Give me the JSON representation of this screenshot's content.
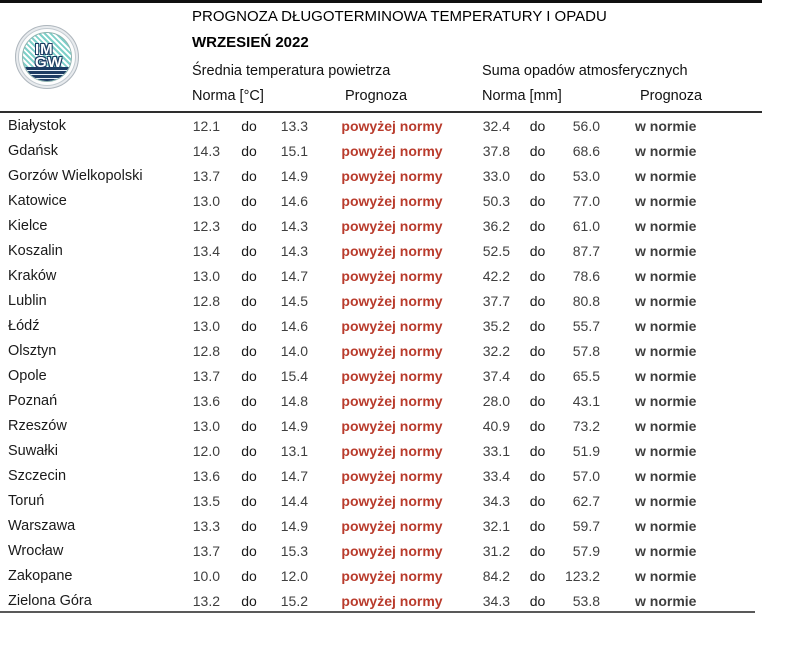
{
  "header": {
    "title": "PROGNOZA DŁUGOTERMINOWA TEMPERATURY I OPADU",
    "subtitle": "WRZESIEŃ 2022",
    "temp_group_label": "Średnia temperatura powietrza",
    "precip_group_label": "Suma opadów atmosferycznych",
    "temp_norm_label": "Norma [°C]",
    "temp_forecast_label": "Prognoza",
    "precip_norm_label": "Norma [mm]",
    "precip_forecast_label": "Prognoza",
    "logo_text_top": "IM",
    "logo_text_bottom": "GW"
  },
  "colors": {
    "above_norm_red": "#b93b2c",
    "in_norm_gray": "#3f3f3f",
    "logo_teal": "#7ed0c9",
    "logo_navy": "#1c3c63"
  },
  "table": {
    "separator_word": "do",
    "rows": [
      {
        "city": "Białystok",
        "t_low": "12.1",
        "t_high": "13.3",
        "t_prognoza": "powyżej normy",
        "p_low": "32.4",
        "p_high": "56.0",
        "p_prognoza": "w normie"
      },
      {
        "city": "Gdańsk",
        "t_low": "14.3",
        "t_high": "15.1",
        "t_prognoza": "powyżej normy",
        "p_low": "37.8",
        "p_high": "68.6",
        "p_prognoza": "w normie"
      },
      {
        "city": "Gorzów Wielkopolski",
        "t_low": "13.7",
        "t_high": "14.9",
        "t_prognoza": "powyżej normy",
        "p_low": "33.0",
        "p_high": "53.0",
        "p_prognoza": "w normie"
      },
      {
        "city": "Katowice",
        "t_low": "13.0",
        "t_high": "14.6",
        "t_prognoza": "powyżej normy",
        "p_low": "50.3",
        "p_high": "77.0",
        "p_prognoza": "w normie"
      },
      {
        "city": "Kielce",
        "t_low": "12.3",
        "t_high": "14.3",
        "t_prognoza": "powyżej normy",
        "p_low": "36.2",
        "p_high": "61.0",
        "p_prognoza": "w normie"
      },
      {
        "city": "Koszalin",
        "t_low": "13.4",
        "t_high": "14.3",
        "t_prognoza": "powyżej normy",
        "p_low": "52.5",
        "p_high": "87.7",
        "p_prognoza": "w normie"
      },
      {
        "city": "Kraków",
        "t_low": "13.0",
        "t_high": "14.7",
        "t_prognoza": "powyżej normy",
        "p_low": "42.2",
        "p_high": "78.6",
        "p_prognoza": "w normie"
      },
      {
        "city": "Lublin",
        "t_low": "12.8",
        "t_high": "14.5",
        "t_prognoza": "powyżej normy",
        "p_low": "37.7",
        "p_high": "80.8",
        "p_prognoza": "w normie"
      },
      {
        "city": "Łódź",
        "t_low": "13.0",
        "t_high": "14.6",
        "t_prognoza": "powyżej normy",
        "p_low": "35.2",
        "p_high": "55.7",
        "p_prognoza": "w normie"
      },
      {
        "city": "Olsztyn",
        "t_low": "12.8",
        "t_high": "14.0",
        "t_prognoza": "powyżej normy",
        "p_low": "32.2",
        "p_high": "57.8",
        "p_prognoza": "w normie"
      },
      {
        "city": "Opole",
        "t_low": "13.7",
        "t_high": "15.4",
        "t_prognoza": "powyżej normy",
        "p_low": "37.4",
        "p_high": "65.5",
        "p_prognoza": "w normie"
      },
      {
        "city": "Poznań",
        "t_low": "13.6",
        "t_high": "14.8",
        "t_prognoza": "powyżej normy",
        "p_low": "28.0",
        "p_high": "43.1",
        "p_prognoza": "w normie"
      },
      {
        "city": "Rzeszów",
        "t_low": "13.0",
        "t_high": "14.9",
        "t_prognoza": "powyżej normy",
        "p_low": "40.9",
        "p_high": "73.2",
        "p_prognoza": "w normie"
      },
      {
        "city": "Suwałki",
        "t_low": "12.0",
        "t_high": "13.1",
        "t_prognoza": "powyżej normy",
        "p_low": "33.1",
        "p_high": "51.9",
        "p_prognoza": "w normie"
      },
      {
        "city": "Szczecin",
        "t_low": "13.6",
        "t_high": "14.7",
        "t_prognoza": "powyżej normy",
        "p_low": "33.4",
        "p_high": "57.0",
        "p_prognoza": "w normie"
      },
      {
        "city": "Toruń",
        "t_low": "13.5",
        "t_high": "14.4",
        "t_prognoza": "powyżej normy",
        "p_low": "34.3",
        "p_high": "62.7",
        "p_prognoza": "w normie"
      },
      {
        "city": "Warszawa",
        "t_low": "13.3",
        "t_high": "14.9",
        "t_prognoza": "powyżej normy",
        "p_low": "32.1",
        "p_high": "59.7",
        "p_prognoza": "w normie"
      },
      {
        "city": "Wrocław",
        "t_low": "13.7",
        "t_high": "15.3",
        "t_prognoza": "powyżej normy",
        "p_low": "31.2",
        "p_high": "57.9",
        "p_prognoza": "w normie"
      },
      {
        "city": "Zakopane",
        "t_low": "10.0",
        "t_high": "12.0",
        "t_prognoza": "powyżej normy",
        "p_low": "84.2",
        "p_high": "123.2",
        "p_prognoza": "w normie"
      },
      {
        "city": "Zielona Góra",
        "t_low": "13.2",
        "t_high": "15.2",
        "t_prognoza": "powyżej normy",
        "p_low": "34.3",
        "p_high": "53.8",
        "p_prognoza": "w normie"
      }
    ]
  }
}
